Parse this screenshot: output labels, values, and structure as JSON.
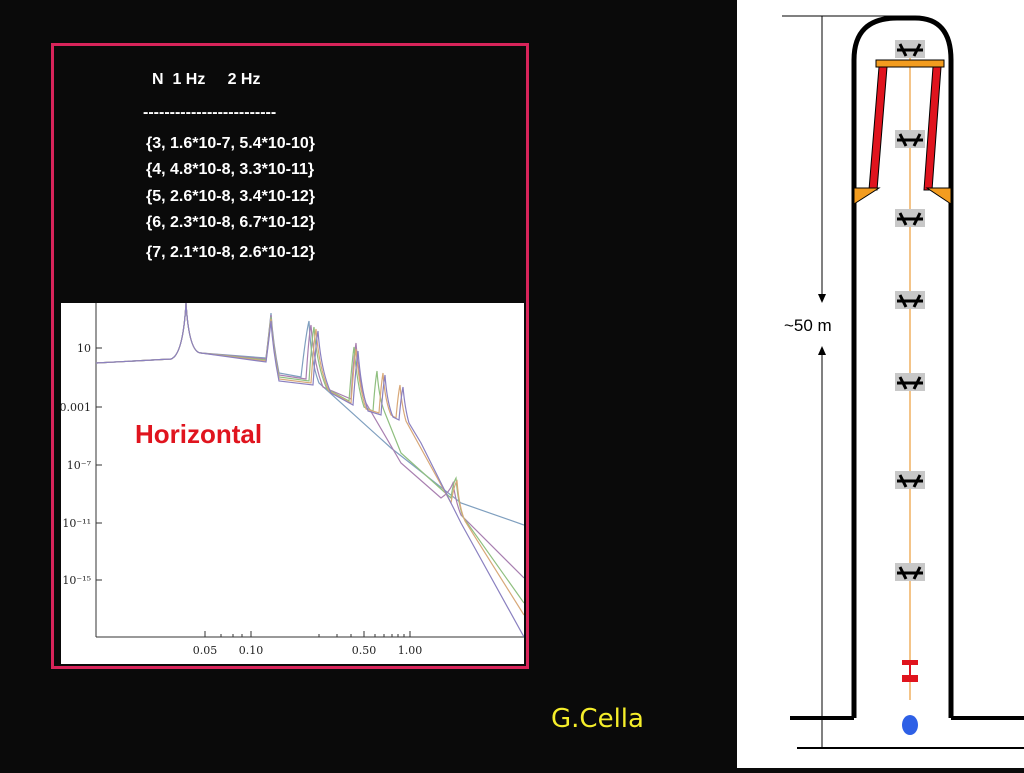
{
  "table": {
    "header": "N  1 Hz     2 Hz",
    "divider": "-------------------------",
    "rows": [
      "{3, 1.6*10-7, 5.4*10-10}",
      "{4, 4.8*10-8, 3.3*10-11}",
      "{5, 2.6*10-8, 3.4*10-12}",
      "{6, 2.3*10-8, 6.7*10-12}",
      "{7, 2.1*10-8, 2.6*10-12}"
    ]
  },
  "plot": {
    "annotation": "Horizontal",
    "annotation_color": "#e0141e",
    "y_ticks": [
      "10",
      "0.001",
      "10⁻⁷",
      "10⁻¹¹",
      "10⁻¹⁵"
    ],
    "x_ticks": [
      "0.05",
      "0.10",
      "0.50",
      "1.00"
    ],
    "series_colors": [
      "#7f9fbf",
      "#a87fb0",
      "#8fbf7f",
      "#d8a878",
      "#8a80c0"
    ]
  },
  "diagram": {
    "height_label": "~50 m",
    "arm_color": "#e0141e",
    "bar_color": "#f39c1f",
    "blue_dot_color": "#2e60e6"
  },
  "credit": "G.Cella",
  "colors": {
    "background": "#0a0a0a",
    "frame": "#d8245a",
    "credit": "#f5ee2a"
  }
}
